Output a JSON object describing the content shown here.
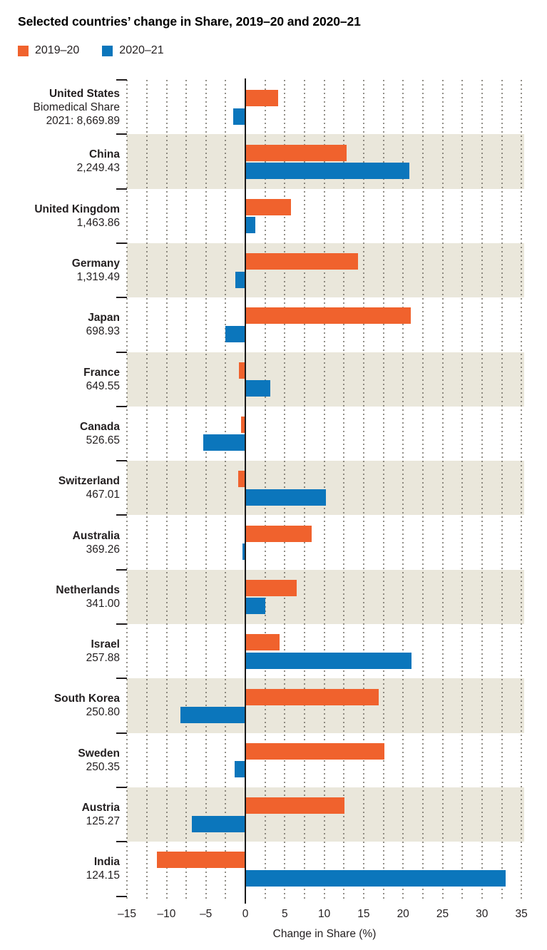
{
  "title": "Selected countries’ change in Share, 2019–20 and 2020–21",
  "legend": {
    "items": [
      {
        "label": "2019–20",
        "color": "#f0622d"
      },
      {
        "label": "2020–21",
        "color": "#0b76bc"
      }
    ]
  },
  "chart_data": {
    "type": "bar",
    "orientation": "horizontal",
    "title": "Selected countries’ change in Share, 2019–20 and 2020–21",
    "xlabel": "Change in Share (%)",
    "xlim": [
      -15,
      35
    ],
    "xticks": [
      -15,
      -10,
      -5,
      0,
      5,
      10,
      15,
      20,
      25,
      30,
      35
    ],
    "tick_labels": [
      "–15",
      "–10",
      "–5",
      "0",
      "5",
      "10",
      "15",
      "20",
      "25",
      "30",
      "35"
    ],
    "grid": "dotted vertical gridlines every 2.5 units; solid black line at 0",
    "legend_position": "top-left",
    "row_striping": "alternating beige band on every second country (China, Germany, France, Switzerland, Netherlands, South Korea, Austria)",
    "categories": [
      "United States",
      "China",
      "United Kingdom",
      "Germany",
      "Japan",
      "France",
      "Canada",
      "Switzerland",
      "Australia",
      "Netherlands",
      "Israel",
      "South Korea",
      "Sweden",
      "Austria",
      "India"
    ],
    "category_share_values": [
      "Biomedical Share 2021: 8,669.89",
      "2,249.43",
      "1,463.86",
      "1,319.49",
      "698.93",
      "649.55",
      "526.65",
      "467.01",
      "369.26",
      "341.00",
      "257.88",
      "250.80",
      "250.35",
      "125.27",
      "124.15"
    ],
    "series": [
      {
        "name": "2019–20",
        "color": "#f0622d",
        "values": [
          4.2,
          12.8,
          5.8,
          14.3,
          21.0,
          -0.8,
          -0.5,
          -0.9,
          8.4,
          6.5,
          4.3,
          16.9,
          17.6,
          12.6,
          -11.2
        ]
      },
      {
        "name": "2020–21",
        "color": "#0b76bc",
        "values": [
          -1.5,
          20.8,
          1.3,
          -1.3,
          -2.5,
          3.2,
          -5.3,
          10.2,
          -0.4,
          2.5,
          21.1,
          -8.2,
          -1.4,
          -6.8,
          33.0
        ]
      }
    ]
  },
  "rows": [
    {
      "name": "United States",
      "note": "Biomedical Share",
      "value": "2021: 8,669.89"
    },
    {
      "name": "China",
      "value": "2,249.43"
    },
    {
      "name": "United Kingdom",
      "value": "1,463.86"
    },
    {
      "name": "Germany",
      "value": "1,319.49"
    },
    {
      "name": "Japan",
      "value": "698.93"
    },
    {
      "name": "France",
      "value": "649.55"
    },
    {
      "name": "Canada",
      "value": "526.65"
    },
    {
      "name": "Switzerland",
      "value": "467.01"
    },
    {
      "name": "Australia",
      "value": "369.26"
    },
    {
      "name": "Netherlands",
      "value": "341.00"
    },
    {
      "name": "Israel",
      "value": "257.88"
    },
    {
      "name": "South Korea",
      "value": "250.80"
    },
    {
      "name": "Sweden",
      "value": "250.35"
    },
    {
      "name": "Austria",
      "value": "125.27"
    },
    {
      "name": "India",
      "value": "124.15"
    }
  ],
  "colors": {
    "orange": "#f0622d",
    "blue": "#0b76bc",
    "stripe": "#eae7db",
    "text": "#231f20",
    "axis": "#1a1a1a",
    "grid_dot": "#6e6a60"
  }
}
